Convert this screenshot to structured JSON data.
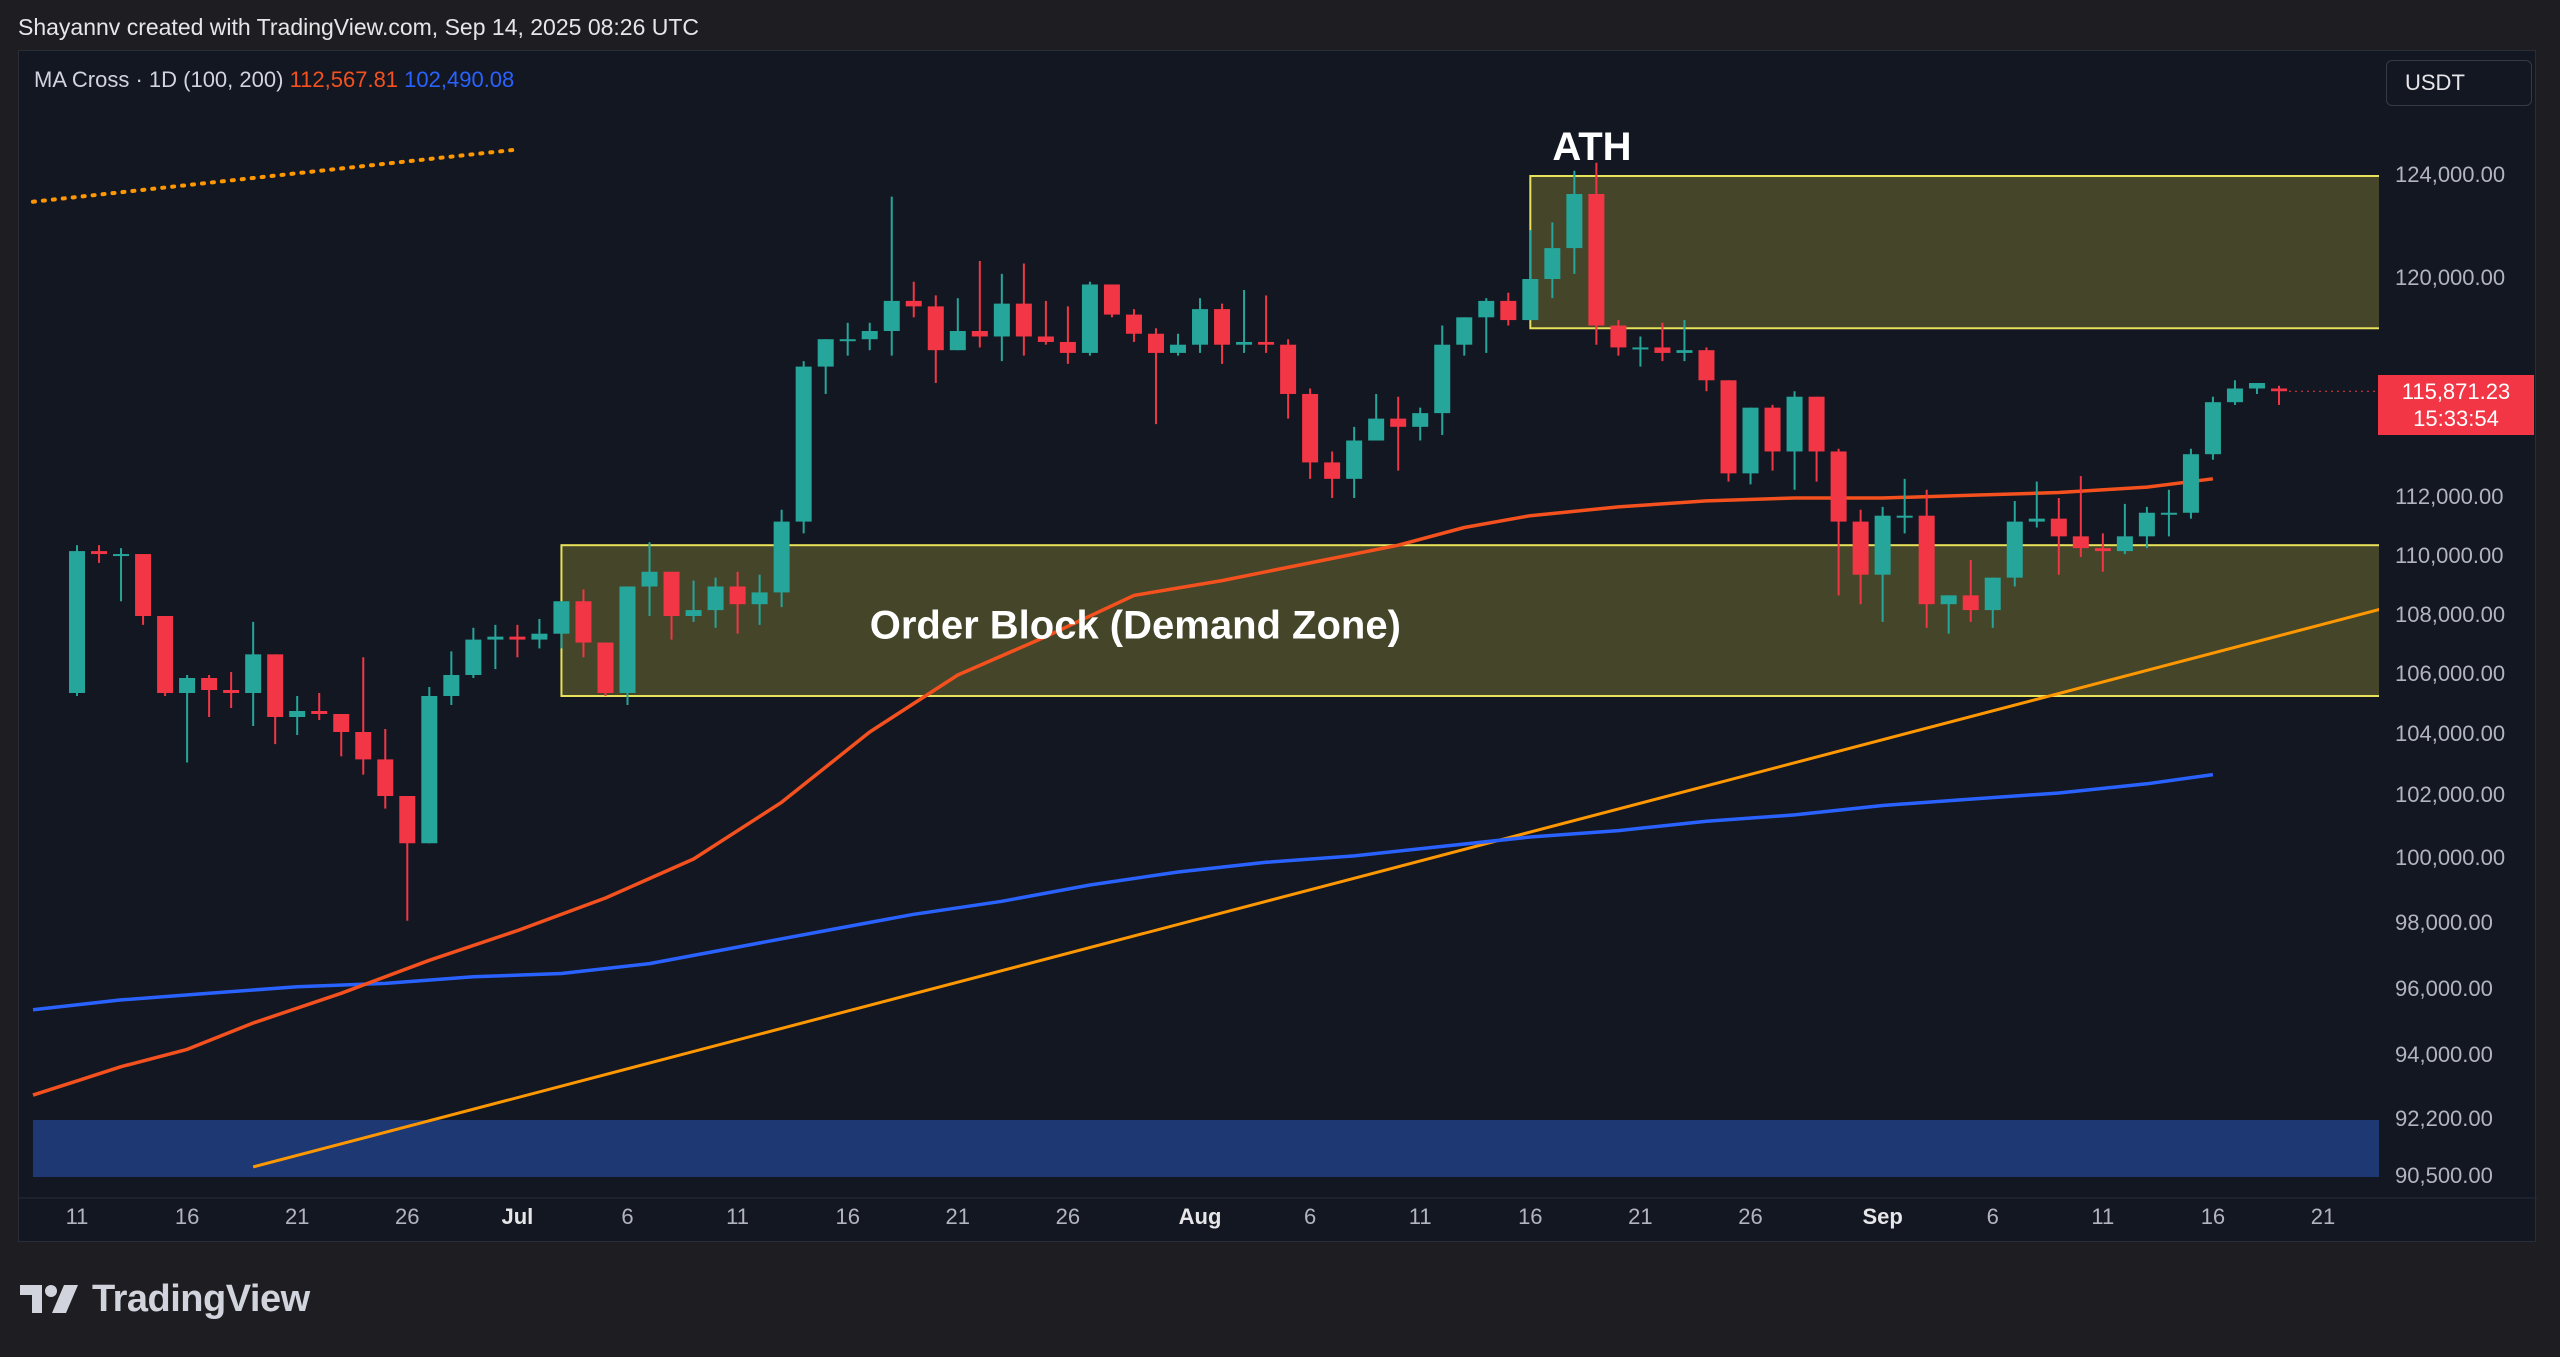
{
  "credit": "Shayannv created with TradingView.com, Sep 14, 2025 08:26 UTC",
  "legend": {
    "label": "MA Cross · 1D (100, 200)",
    "ma100_value": "112,567.81",
    "ma200_value": "102,490.08"
  },
  "currency_button": "USDT",
  "price_tag": {
    "price": "115,871.23",
    "countdown": "15:33:54"
  },
  "brand": {
    "name": "TradingView",
    "icon": "tradingview-logo-icon"
  },
  "colors": {
    "bull": "#26a69a",
    "bear": "#f23645",
    "ma100": "#f4511e",
    "ma200": "#2962ff",
    "trendline": "#ff9800",
    "zone_fill": "#4b4a2a",
    "zone_border": "#e8e25a",
    "liquidity_zone": "#1e3a78"
  },
  "chart_data": {
    "type": "candlestick",
    "timeframe": "1D",
    "y_ticks": [
      "124,000.00",
      "120,000.00",
      "112,000.00",
      "110,000.00",
      "108,000.00",
      "106,000.00",
      "104,000.00",
      "102,000.00",
      "100,000.00",
      "98,000.00",
      "96,000.00",
      "94,000.00",
      "92,200.00",
      "90,500.00"
    ],
    "x_ticks": [
      {
        "day": 0,
        "label": "11",
        "bold": false
      },
      {
        "day": 5,
        "label": "16",
        "bold": false
      },
      {
        "day": 10,
        "label": "21",
        "bold": false
      },
      {
        "day": 15,
        "label": "26",
        "bold": false
      },
      {
        "day": 20,
        "label": "Jul",
        "bold": true
      },
      {
        "day": 25,
        "label": "6",
        "bold": false
      },
      {
        "day": 30,
        "label": "11",
        "bold": false
      },
      {
        "day": 35,
        "label": "16",
        "bold": false
      },
      {
        "day": 40,
        "label": "21",
        "bold": false
      },
      {
        "day": 45,
        "label": "26",
        "bold": false
      },
      {
        "day": 51,
        "label": "Aug",
        "bold": true
      },
      {
        "day": 56,
        "label": "6",
        "bold": false
      },
      {
        "day": 61,
        "label": "11",
        "bold": false
      },
      {
        "day": 66,
        "label": "16",
        "bold": false
      },
      {
        "day": 71,
        "label": "21",
        "bold": false
      },
      {
        "day": 76,
        "label": "26",
        "bold": false
      },
      {
        "day": 82,
        "label": "Sep",
        "bold": true
      },
      {
        "day": 87,
        "label": "6",
        "bold": false
      },
      {
        "day": 92,
        "label": "11",
        "bold": false
      },
      {
        "day": 97,
        "label": "16",
        "bold": false
      },
      {
        "day": 102,
        "label": "21",
        "bold": false
      }
    ],
    "candles_ohlc": [
      [
        105400,
        110200,
        105300,
        110400
      ],
      [
        110200,
        110100,
        109800,
        110400
      ],
      [
        110100,
        110100,
        108500,
        110300
      ],
      [
        110100,
        108000,
        107700,
        110100
      ],
      [
        108000,
        105400,
        105300,
        108000
      ],
      [
        105400,
        105900,
        103100,
        106000
      ],
      [
        105900,
        105500,
        104600,
        106000
      ],
      [
        105500,
        105400,
        104900,
        106100
      ],
      [
        105400,
        106700,
        104300,
        107800
      ],
      [
        106700,
        104600,
        103700,
        106700
      ],
      [
        104600,
        104800,
        104000,
        105300
      ],
      [
        104800,
        104700,
        104500,
        105400
      ],
      [
        104700,
        104100,
        103300,
        104700
      ],
      [
        104100,
        103200,
        102700,
        106600
      ],
      [
        103200,
        102000,
        101600,
        104200
      ],
      [
        102000,
        100500,
        98100,
        102000
      ],
      [
        100500,
        105300,
        100500,
        105600
      ],
      [
        105300,
        106000,
        105000,
        106800
      ],
      [
        106000,
        107200,
        105900,
        107600
      ],
      [
        107200,
        107300,
        106200,
        107700
      ],
      [
        107300,
        107200,
        106600,
        107700
      ],
      [
        107200,
        107400,
        106900,
        107900
      ],
      [
        107400,
        108500,
        106900,
        108500
      ],
      [
        108500,
        107100,
        106600,
        108900
      ],
      [
        107100,
        105400,
        105300,
        107100
      ],
      [
        105400,
        109000,
        105000,
        109000
      ],
      [
        109000,
        109500,
        108000,
        110500
      ],
      [
        109500,
        108000,
        107200,
        109500
      ],
      [
        108000,
        108200,
        107800,
        109200
      ],
      [
        108200,
        109000,
        107600,
        109300
      ],
      [
        109000,
        108400,
        107400,
        109500
      ],
      [
        108400,
        108800,
        107700,
        109400
      ],
      [
        108800,
        111200,
        108300,
        111600
      ],
      [
        111200,
        116800,
        110800,
        117000
      ],
      [
        116800,
        117800,
        115800,
        117800
      ],
      [
        117800,
        117800,
        117200,
        118400
      ],
      [
        117800,
        118100,
        117400,
        118400
      ],
      [
        118100,
        119200,
        117200,
        123200
      ],
      [
        119200,
        119000,
        118600,
        119900
      ],
      [
        119000,
        117400,
        116200,
        119400
      ],
      [
        117400,
        118100,
        117400,
        119300
      ],
      [
        118100,
        117900,
        117500,
        120700
      ],
      [
        117900,
        119100,
        117000,
        120200
      ],
      [
        119100,
        117900,
        117200,
        120600
      ],
      [
        117900,
        117700,
        117600,
        119200
      ],
      [
        117700,
        117300,
        116900,
        119000
      ],
      [
        117300,
        119800,
        117200,
        119900
      ],
      [
        119800,
        118700,
        118600,
        119800
      ],
      [
        118700,
        118000,
        117700,
        118900
      ],
      [
        118000,
        117300,
        114700,
        118200
      ],
      [
        117300,
        117600,
        117200,
        118000
      ],
      [
        117600,
        118900,
        117300,
        119300
      ],
      [
        118900,
        117600,
        116900,
        119100
      ],
      [
        117600,
        117700,
        117300,
        119600
      ],
      [
        117700,
        117600,
        117300,
        119400
      ],
      [
        117600,
        115800,
        114900,
        117800
      ],
      [
        115800,
        113300,
        112700,
        116000
      ],
      [
        113300,
        112700,
        112000,
        113700
      ],
      [
        112700,
        114100,
        112000,
        114600
      ],
      [
        114100,
        114900,
        114100,
        115800
      ],
      [
        114900,
        114600,
        113000,
        115700
      ],
      [
        114600,
        115100,
        114100,
        115300
      ],
      [
        115100,
        117600,
        114300,
        118300
      ],
      [
        117600,
        118600,
        117200,
        118600
      ],
      [
        118600,
        119200,
        117300,
        119300
      ],
      [
        119200,
        118500,
        118300,
        119500
      ],
      [
        118500,
        120000,
        118500,
        121900
      ],
      [
        120000,
        121200,
        119300,
        122200
      ],
      [
        121200,
        123300,
        120200,
        124200
      ],
      [
        123300,
        118300,
        117600,
        124500
      ],
      [
        118300,
        117500,
        117200,
        118500
      ],
      [
        117500,
        117500,
        116800,
        117900
      ],
      [
        117500,
        117300,
        117000,
        118400
      ],
      [
        117300,
        117400,
        117000,
        118500
      ],
      [
        117400,
        116300,
        115900,
        117500
      ],
      [
        116300,
        112900,
        112600,
        116300
      ],
      [
        112900,
        115300,
        112500,
        115300
      ],
      [
        115300,
        113700,
        113000,
        115400
      ],
      [
        113700,
        115700,
        112300,
        115900
      ],
      [
        115700,
        113700,
        112600,
        115700
      ],
      [
        113700,
        111200,
        108700,
        113800
      ],
      [
        111200,
        109400,
        108400,
        111600
      ],
      [
        109400,
        111400,
        107800,
        111700
      ],
      [
        111400,
        111400,
        110800,
        112700
      ],
      [
        111400,
        108400,
        107600,
        112300
      ],
      [
        108400,
        108700,
        107400,
        108700
      ],
      [
        108700,
        108200,
        107800,
        109900
      ],
      [
        108200,
        109300,
        107600,
        109300
      ],
      [
        109300,
        111200,
        109000,
        111900
      ],
      [
        111200,
        111300,
        111000,
        112600
      ],
      [
        111300,
        110700,
        109400,
        112000
      ],
      [
        110700,
        110300,
        110000,
        112800
      ],
      [
        110300,
        110200,
        109500,
        110800
      ],
      [
        110200,
        110700,
        110100,
        111800
      ],
      [
        110700,
        111500,
        110300,
        111700
      ],
      [
        111500,
        111500,
        110700,
        112300
      ],
      [
        111500,
        113600,
        111300,
        113800
      ],
      [
        113600,
        115500,
        113400,
        115700
      ],
      [
        115500,
        116000,
        115400,
        116300
      ],
      [
        116000,
        116200,
        115800,
        116100
      ],
      [
        116000,
        115900,
        115400,
        116100
      ]
    ],
    "ma100_points": [
      [
        -2,
        92900
      ],
      [
        0,
        93300
      ],
      [
        2,
        93700
      ],
      [
        5,
        94200
      ],
      [
        8,
        95000
      ],
      [
        12,
        95900
      ],
      [
        16,
        96900
      ],
      [
        20,
        97800
      ],
      [
        24,
        98800
      ],
      [
        28,
        100000
      ],
      [
        32,
        101800
      ],
      [
        36,
        104100
      ],
      [
        40,
        106000
      ],
      [
        44,
        107300
      ],
      [
        48,
        108700
      ],
      [
        52,
        109200
      ],
      [
        56,
        109800
      ],
      [
        60,
        110400
      ],
      [
        63,
        111000
      ],
      [
        66,
        111400
      ],
      [
        70,
        111700
      ],
      [
        74,
        111900
      ],
      [
        78,
        112000
      ],
      [
        82,
        112000
      ],
      [
        86,
        112100
      ],
      [
        90,
        112200
      ],
      [
        94,
        112400
      ],
      [
        97,
        112700
      ]
    ],
    "ma200_points": [
      [
        -2,
        95400
      ],
      [
        2,
        95700
      ],
      [
        6,
        95900
      ],
      [
        10,
        96100
      ],
      [
        14,
        96200
      ],
      [
        18,
        96400
      ],
      [
        22,
        96500
      ],
      [
        26,
        96800
      ],
      [
        30,
        97300
      ],
      [
        34,
        97800
      ],
      [
        38,
        98300
      ],
      [
        42,
        98700
      ],
      [
        46,
        99200
      ],
      [
        50,
        99600
      ],
      [
        54,
        99900
      ],
      [
        58,
        100100
      ],
      [
        62,
        100400
      ],
      [
        66,
        100700
      ],
      [
        70,
        100900
      ],
      [
        74,
        101200
      ],
      [
        78,
        101400
      ],
      [
        82,
        101700
      ],
      [
        86,
        101900
      ],
      [
        90,
        102100
      ],
      [
        94,
        102400
      ],
      [
        97,
        102700
      ]
    ],
    "trendline_points": [
      [
        8,
        90800
      ],
      [
        107,
        108700
      ]
    ],
    "secondary_trendline_points": [
      [
        -2,
        123000
      ],
      [
        20,
        125000
      ]
    ],
    "zones": [
      {
        "label": "ATH",
        "day_start": 66,
        "day_end": 107,
        "price_low": 118200,
        "price_high": 124000,
        "label_day": 67,
        "label_price": 125000
      },
      {
        "label": "Order Block (Demand Zone)",
        "day_start": 22,
        "day_end": 107,
        "price_low": 105300,
        "price_high": 110400,
        "label_day": 36,
        "label_price": 107600
      },
      {
        "label": "",
        "day_start": -2,
        "day_end": 107,
        "price_low": 90500,
        "price_high": 92200
      }
    ]
  }
}
